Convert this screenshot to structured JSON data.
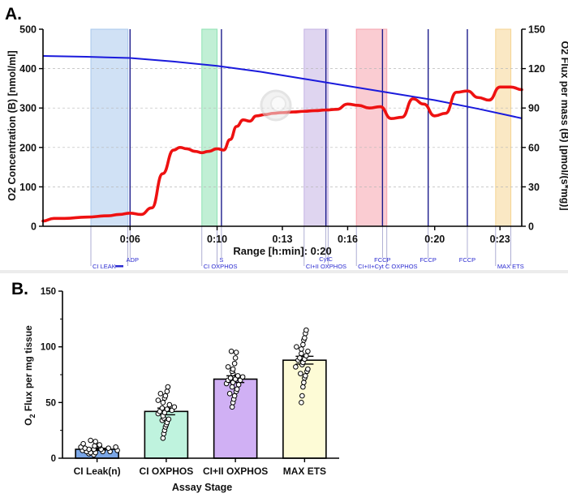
{
  "panel_a": {
    "panel_label": "A.",
    "xlabel": "Range [h:min]: 0:20",
    "ylabel_left": "O2 Concentration (B) [nmol/ml]",
    "ylabel_right": "O2 Flux per mass (B) [pmol/(s*mg)]",
    "colors": {
      "concentration": "#1a1adc",
      "flux": "#ee1111",
      "event_line": "#1c1c8c",
      "marker_text": "#2a2ad0"
    },
    "chart_data": {
      "type": "line",
      "x_unit": "minutes",
      "xlim": [
        2.0,
        24.0
      ],
      "ylim_left": [
        0,
        500
      ],
      "ylim_right": [
        0,
        150
      ],
      "yticks_left": [
        "0",
        "100",
        "200",
        "300",
        "400",
        "500"
      ],
      "yticks_right": [
        "0",
        "30",
        "60",
        "90",
        "120",
        "150"
      ],
      "xticks": [
        {
          "x": 6,
          "label": "0:06"
        },
        {
          "x": 10,
          "label": "0:10"
        },
        {
          "x": 13,
          "label": "0:13"
        },
        {
          "x": 16,
          "label": "0:16"
        },
        {
          "x": 20,
          "label": "0:20"
        },
        {
          "x": 23,
          "label": "0:23"
        }
      ],
      "grid": true,
      "series": [
        {
          "axis": "left",
          "x": [
            2.0,
            4.0,
            6.0,
            8.0,
            10.0,
            12.0,
            14.0,
            16.0,
            18.0,
            20.0,
            22.0,
            24.0
          ],
          "y": [
            432,
            430,
            427,
            418,
            407,
            392,
            374,
            356,
            338,
            320,
            298,
            274
          ]
        },
        {
          "axis": "right",
          "x": [
            2.0,
            2.5,
            3.0,
            4.0,
            5.0,
            5.5,
            6.0,
            6.5,
            7.0,
            7.5,
            8.0,
            8.3,
            8.6,
            9.0,
            9.3,
            9.6,
            10.0,
            10.3,
            10.6,
            10.9,
            11.2,
            11.5,
            11.8,
            12.2,
            12.6,
            13.0,
            13.5,
            14.0,
            14.5,
            15.0,
            15.5,
            16.0,
            16.5,
            17.0,
            17.5,
            18.0,
            18.5,
            19.0,
            19.5,
            20.0,
            20.5,
            21.0,
            21.5,
            22.0,
            22.5,
            23.0,
            23.5,
            24.0
          ],
          "y": [
            4,
            6,
            6,
            7,
            8,
            9,
            10,
            9,
            14,
            40,
            58,
            60,
            59,
            57,
            56,
            57,
            59,
            58,
            66,
            76,
            81,
            80,
            84,
            85,
            86,
            86.5,
            87,
            87.5,
            88,
            88.5,
            89,
            93,
            92,
            90,
            91,
            82,
            83,
            97,
            93,
            84,
            86,
            102,
            103,
            98,
            96,
            106,
            106,
            104
          ]
        }
      ],
      "regions": [
        {
          "x0": 4.2,
          "x1": 5.9,
          "color": "#a9c8ec",
          "label": "CI LEAK"
        },
        {
          "x0": 9.3,
          "x1": 10.0,
          "color": "#8ee2b2",
          "label": "CI OXPHOS"
        },
        {
          "x0": 14.0,
          "x1": 15.1,
          "color": "#c5b3e3",
          "label": "CI+II OXPHOS"
        },
        {
          "x0": 16.4,
          "x1": 17.8,
          "color": "#f6a2ad",
          "label": "CI+II+Cyt C OXPHOS"
        },
        {
          "x0": 22.8,
          "x1": 23.5,
          "color": "#f5d593",
          "label": "MAX ETS"
        }
      ],
      "events": [
        {
          "x": 6.0,
          "label": "ADP"
        },
        {
          "x": 10.2,
          "label": "S"
        },
        {
          "x": 15.0,
          "label": "CytC"
        },
        {
          "x": 17.6,
          "label": "FCCP"
        },
        {
          "x": 19.7,
          "label": "FCCP"
        },
        {
          "x": 21.5,
          "label": "FCCP"
        }
      ]
    }
  },
  "panel_b": {
    "panel_label": "B.",
    "chart_data": {
      "type": "bar",
      "xlabel": "Assay Stage",
      "ylabel": "O2 Flux per mg tissue",
      "ylabel_parts": [
        "O",
        "2",
        " Flux per mg tissue"
      ],
      "ylim": [
        0,
        150
      ],
      "yticks": [
        "0",
        "50",
        "100",
        "150"
      ],
      "categories": [
        "CI Leak(n)",
        "CI OXPHOS",
        "CI+II OXPHOS",
        "MAX ETS"
      ],
      "values": [
        8,
        42,
        71,
        88
      ],
      "errors": [
        1,
        3,
        3,
        3.5
      ],
      "colors": [
        "#7aa6e6",
        "#bff3de",
        "#d0b0f4",
        "#fdfbd6"
      ],
      "points": [
        [
          3,
          4,
          5,
          5,
          6,
          6,
          7,
          7,
          8,
          8,
          9,
          9,
          10,
          10,
          11,
          12,
          13,
          15,
          16,
          6,
          8,
          11
        ],
        [
          18,
          22,
          25,
          28,
          30,
          32,
          34,
          36,
          38,
          40,
          41,
          42,
          43,
          44,
          46,
          48,
          50,
          52,
          54,
          56,
          58,
          60,
          64,
          35,
          45
        ],
        [
          46,
          50,
          53,
          56,
          58,
          60,
          62,
          64,
          66,
          67,
          68,
          70,
          71,
          72,
          73,
          74,
          76,
          78,
          80,
          82,
          85,
          90,
          95,
          96,
          70
        ],
        [
          50,
          56,
          64,
          68,
          72,
          74,
          76,
          78,
          80,
          82,
          84,
          86,
          88,
          89,
          90,
          92,
          94,
          96,
          98,
          100,
          102,
          106,
          108,
          112,
          115
        ]
      ]
    }
  }
}
